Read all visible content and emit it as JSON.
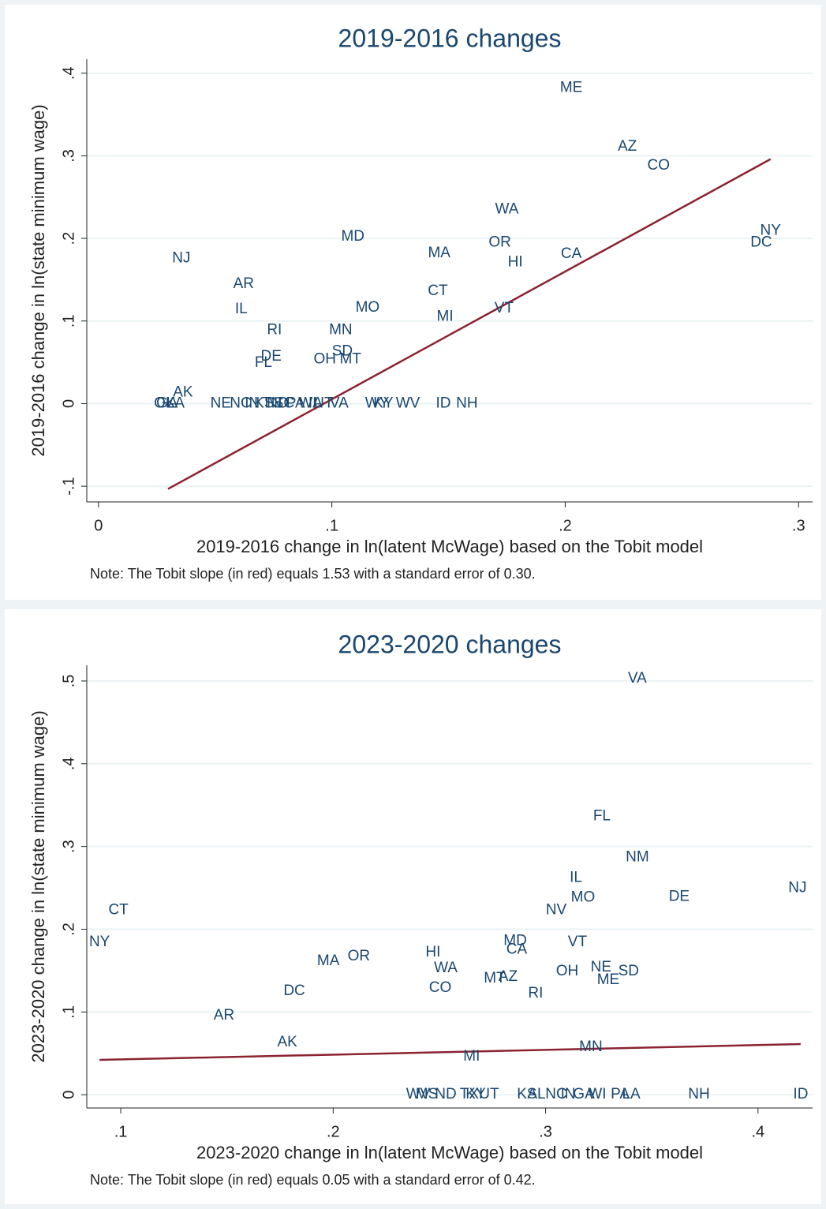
{
  "chart_data": [
    {
      "type": "scatter",
      "title": "2019-2016 changes",
      "x_label": "2019-2016 change in ln(latent McWage) based on the Tobit model",
      "y_label": "2019-2016 change in ln(state minimum wage)",
      "note": "Note: The Tobit slope (in red) equals 1.53 with a standard error of 0.30.",
      "text_color": "#1a476f",
      "labels": [
        "ME",
        "AZ",
        "CO",
        "WA",
        "NY",
        "DC",
        "MD",
        "NJ",
        "OR",
        "MA",
        "HI",
        "CA",
        "AR",
        "CT",
        "MO",
        "VT",
        "IL",
        "MI",
        "RI",
        "MN",
        "SD",
        "DE",
        "OH",
        "MT",
        "FL",
        "AK",
        "OK",
        "GA",
        "LA",
        "NE",
        "NC",
        "IN",
        "KS",
        "TN",
        "ND",
        "SC",
        "PA",
        "WI",
        "IA",
        "UT",
        "VA",
        "WY",
        "KY",
        "WV",
        "ID",
        "NH"
      ],
      "x": [
        0.2026,
        0.2266,
        0.24,
        0.175,
        0.288,
        0.284,
        0.109,
        0.0355,
        0.172,
        0.146,
        0.1786,
        0.2026,
        0.0622,
        0.1454,
        0.1153,
        0.1738,
        0.0612,
        0.1485,
        0.0754,
        0.1038,
        0.1045,
        0.074,
        0.097,
        0.108,
        0.0707,
        0.0362,
        0.0284,
        0.0294,
        0.033,
        0.0524,
        0.0609,
        0.0659,
        0.071,
        0.0744,
        0.0768,
        0.0795,
        0.0845,
        0.0896,
        0.093,
        0.0964,
        0.1031,
        0.1194,
        0.1221,
        0.1326,
        0.1478,
        0.1579
      ],
      "values": [
        0.382,
        0.311,
        0.288,
        0.235,
        0.209,
        0.195,
        0.202,
        0.176,
        0.195,
        0.182,
        0.171,
        0.181,
        0.1445,
        0.136,
        0.116,
        0.115,
        0.114,
        0.105,
        0.089,
        0.089,
        0.063,
        0.057,
        0.0536,
        0.0536,
        0.049,
        0.0134,
        0,
        0,
        0,
        0,
        0,
        0,
        0,
        0,
        0,
        0,
        0,
        0,
        0,
        0,
        0,
        0,
        0,
        0,
        0,
        0
      ],
      "fit": {
        "color": "#8b2331",
        "x": [
          0.0298,
          0.288
        ],
        "values": [
          -0.1033,
          0.296
        ]
      },
      "xlim": [
        -0.005,
        0.306
      ],
      "ylim": [
        -0.119,
        0.417
      ],
      "xticks": [
        0,
        {
          "value": 0.1,
          "label": ".1"
        },
        {
          "value": 0.2,
          "label": ".2"
        },
        {
          "value": 0.3,
          "label": ".3"
        }
      ],
      "yticks": [
        {
          "value": -0.1,
          "label": "-.1"
        },
        0,
        {
          "value": 0.1,
          "label": ".1"
        },
        {
          "value": 0.2,
          "label": ".2"
        },
        {
          "value": 0.3,
          "label": ".3"
        },
        {
          "value": 0.4,
          "label": ".4"
        }
      ],
      "grid": true
    },
    {
      "type": "scatter",
      "title": "2023-2020 changes",
      "x_label": "2023-2020 change in ln(latent McWage) based on the Tobit model",
      "y_label": "2023-2020 change in ln(state minimum wage)",
      "note": "Note: The Tobit slope (in red) equals 0.05 with a standard error of 0.42.",
      "text_color": "#1a476f",
      "labels": [
        "VA",
        "FL",
        "NM",
        "IL",
        "MO",
        "DE",
        "NJ",
        "CT",
        "NV",
        "NY",
        "MD",
        "VT",
        "CA",
        "HI",
        "OR",
        "MA",
        "WA",
        "NE",
        "SD",
        "OH",
        "AZ",
        "MT",
        "ME",
        "RI",
        "CO",
        "DC",
        "AR",
        "AK",
        "MN",
        "MI",
        "WV",
        "MS",
        "ND",
        "TX",
        "KY",
        "UT",
        "KS",
        "AL",
        "NC",
        "IN",
        "GA",
        "WI",
        "PA",
        "LA",
        "NH",
        "ID"
      ],
      "x": [
        0.3432,
        0.3265,
        0.3432,
        0.3143,
        0.3176,
        0.3629,
        0.4186,
        0.0989,
        0.305,
        0.09,
        0.2857,
        0.315,
        0.2864,
        0.247,
        0.2121,
        0.1977,
        0.253,
        0.3261,
        0.3391,
        0.3102,
        0.2823,
        0.276,
        0.3295,
        0.2953,
        0.2504,
        0.1817,
        0.1486,
        0.1784,
        0.3213,
        0.2652,
        0.24,
        0.2441,
        0.253,
        0.2641,
        0.2671,
        0.2734,
        0.2912,
        0.2957,
        0.305,
        0.3106,
        0.318,
        0.3243,
        0.3351,
        0.3403,
        0.3722,
        0.4201
      ],
      "values": [
        0.503,
        0.3365,
        0.287,
        0.262,
        0.238,
        0.239,
        0.2495,
        0.2228,
        0.2228,
        0.1845,
        0.1855,
        0.1845,
        0.175,
        0.172,
        0.167,
        0.1616,
        0.153,
        0.154,
        0.149,
        0.149,
        0.1425,
        0.1405,
        0.1386,
        0.1224,
        0.129,
        0.1252,
        0.0956,
        0.0631,
        0.0574,
        0.0459,
        0,
        0,
        0,
        0,
        0,
        0,
        0,
        0,
        0,
        0,
        0,
        0,
        0,
        0,
        0,
        0
      ],
      "fit": {
        "color": "#8b2331",
        "x": [
          0.09,
          0.4201
        ],
        "values": [
          0.0421,
          0.0612
        ]
      },
      "xlim": [
        0.084,
        0.4257
      ],
      "ylim": [
        -0.016,
        0.519
      ],
      "xticks": [
        {
          "value": 0.1,
          "label": ".1"
        },
        {
          "value": 0.2,
          "label": ".2"
        },
        {
          "value": 0.3,
          "label": ".3"
        },
        {
          "value": 0.4,
          "label": ".4"
        }
      ],
      "yticks": [
        0,
        {
          "value": 0.1,
          "label": ".1"
        },
        {
          "value": 0.2,
          "label": ".2"
        },
        {
          "value": 0.3,
          "label": ".3"
        },
        {
          "value": 0.4,
          "label": ".4"
        },
        {
          "value": 0.5,
          "label": ".5"
        }
      ],
      "grid": true
    }
  ]
}
